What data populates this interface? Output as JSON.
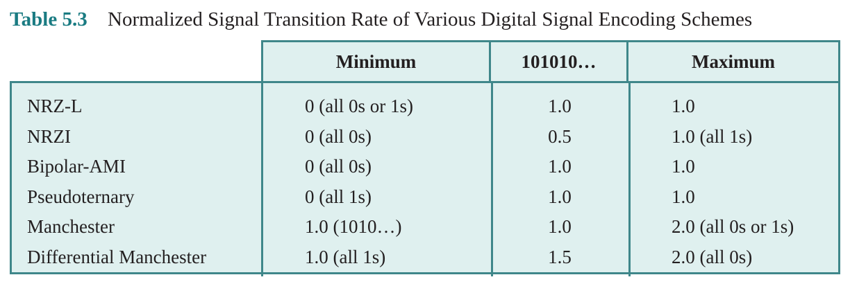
{
  "caption": {
    "label": "Table 5.3",
    "title": "Normalized Signal Transition Rate of Various Digital Signal Encoding Schemes"
  },
  "table": {
    "headers": [
      "Minimum",
      "101010…",
      "Maximum"
    ],
    "rows": [
      {
        "name": "NRZ-L",
        "minimum": "0 (all 0s or 1s)",
        "pattern": "1.0",
        "maximum": "1.0"
      },
      {
        "name": "NRZI",
        "minimum": "0 (all 0s)",
        "pattern": "0.5",
        "maximum": "1.0 (all 1s)"
      },
      {
        "name": "Bipolar-AMI",
        "minimum": "0 (all 0s)",
        "pattern": "1.0",
        "maximum": "1.0"
      },
      {
        "name": "Pseudoternary",
        "minimum": "0 (all 1s)",
        "pattern": "1.0",
        "maximum": "1.0"
      },
      {
        "name": "Manchester",
        "minimum": "1.0 (1010…)",
        "pattern": "1.0",
        "maximum": "2.0 (all 0s or 1s)"
      },
      {
        "name": "Differential Manchester",
        "minimum": "1.0 (all 1s)",
        "pattern": "1.5",
        "maximum": "2.0 (all 0s)"
      }
    ]
  },
  "colors": {
    "accent": "#1a7b82",
    "table_fill": "#dff0ef",
    "table_rule": "#3f878a",
    "text": "#231f20"
  }
}
